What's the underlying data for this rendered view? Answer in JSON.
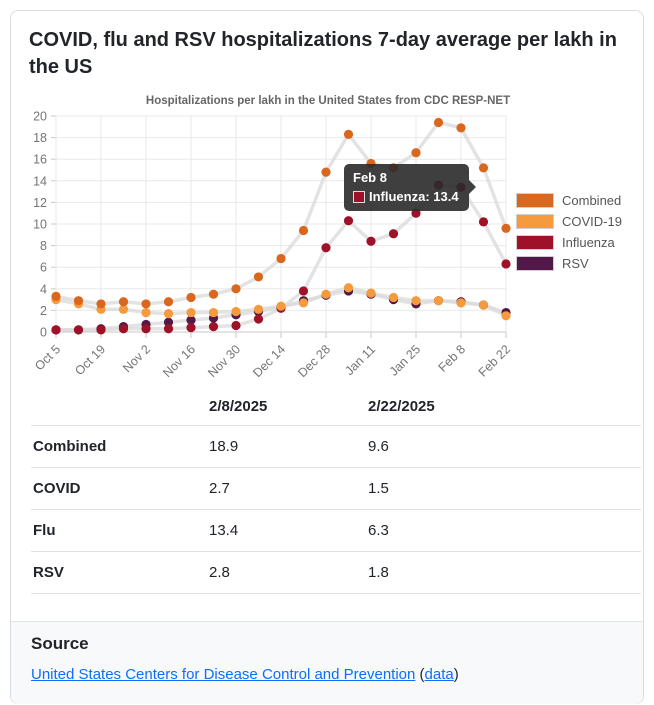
{
  "card_title": "COVID, flu and RSV hospitalizations 7-day average per lakh in the US",
  "chart_data": {
    "type": "line",
    "title": "Hospitalizations per lakh in the United States from CDC RESP-NET",
    "x": [
      "Oct 5",
      "Oct 12",
      "Oct 19",
      "Oct 26",
      "Nov 2",
      "Nov 9",
      "Nov 16",
      "Nov 23",
      "Nov 30",
      "Dec 7",
      "Dec 14",
      "Dec 21",
      "Dec 28",
      "Jan 4",
      "Jan 11",
      "Jan 18",
      "Jan 25",
      "Feb 1",
      "Feb 8",
      "Feb 15",
      "Feb 22"
    ],
    "x_tick_labels": [
      "Oct 5",
      "Oct 19",
      "Nov 2",
      "Nov 16",
      "Nov 30",
      "Dec 14",
      "Dec 28",
      "Jan 11",
      "Jan 25",
      "Feb 8",
      "Feb 22"
    ],
    "ylim": [
      0,
      20
    ],
    "y_ticks": [
      0,
      2,
      4,
      6,
      8,
      10,
      12,
      14,
      16,
      18,
      20
    ],
    "grid": true,
    "legend_position": "right",
    "connector_color": "#dadada",
    "series": [
      {
        "name": "Combined",
        "color": "#d9681e",
        "values": [
          3.3,
          2.9,
          2.6,
          2.8,
          2.6,
          2.8,
          3.2,
          3.5,
          4.0,
          5.1,
          6.8,
          9.4,
          14.8,
          18.3,
          15.6,
          15.2,
          16.6,
          19.4,
          18.9,
          15.2,
          9.6
        ]
      },
      {
        "name": "COVID-19",
        "color": "#f59b3d",
        "values": [
          3.0,
          2.6,
          2.1,
          2.1,
          1.8,
          1.7,
          1.8,
          1.8,
          1.9,
          2.1,
          2.4,
          2.7,
          3.5,
          4.1,
          3.6,
          3.2,
          2.9,
          2.9,
          2.7,
          2.5,
          1.5
        ]
      },
      {
        "name": "Influenza",
        "color": "#9e1128",
        "values": [
          0.2,
          0.2,
          0.2,
          0.3,
          0.3,
          0.3,
          0.4,
          0.5,
          0.6,
          1.2,
          2.2,
          3.8,
          7.8,
          10.3,
          8.4,
          9.1,
          11.0,
          13.6,
          13.4,
          10.2,
          6.3
        ]
      },
      {
        "name": "RSV",
        "color": "#521847",
        "values": [
          0.2,
          0.2,
          0.3,
          0.5,
          0.7,
          0.9,
          1.1,
          1.3,
          1.6,
          1.9,
          2.3,
          2.9,
          3.4,
          3.8,
          3.5,
          3.0,
          2.6,
          2.9,
          2.8,
          2.5,
          1.8
        ]
      }
    ],
    "tooltip": {
      "title": "Feb 8",
      "series": "Influenza",
      "value": "13.4",
      "text": "Influenza: 13.4",
      "swatch_color": "#9e1128",
      "x_index": 18,
      "y_value": 13.4
    }
  },
  "table": {
    "columns": [
      "",
      "2/8/2025",
      "2/22/2025"
    ],
    "rows": [
      {
        "label": "Combined",
        "values": [
          "18.9",
          "9.6"
        ]
      },
      {
        "label": "COVID",
        "values": [
          "2.7",
          "1.5"
        ]
      },
      {
        "label": "Flu",
        "values": [
          "13.4",
          "6.3"
        ]
      },
      {
        "label": "RSV",
        "values": [
          "2.8",
          "1.8"
        ]
      }
    ]
  },
  "source": {
    "heading": "Source",
    "primary_link": "United States Centers for Disease Control and Prevention",
    "open_paren": "(",
    "data_link": "data",
    "close_paren": ")"
  }
}
